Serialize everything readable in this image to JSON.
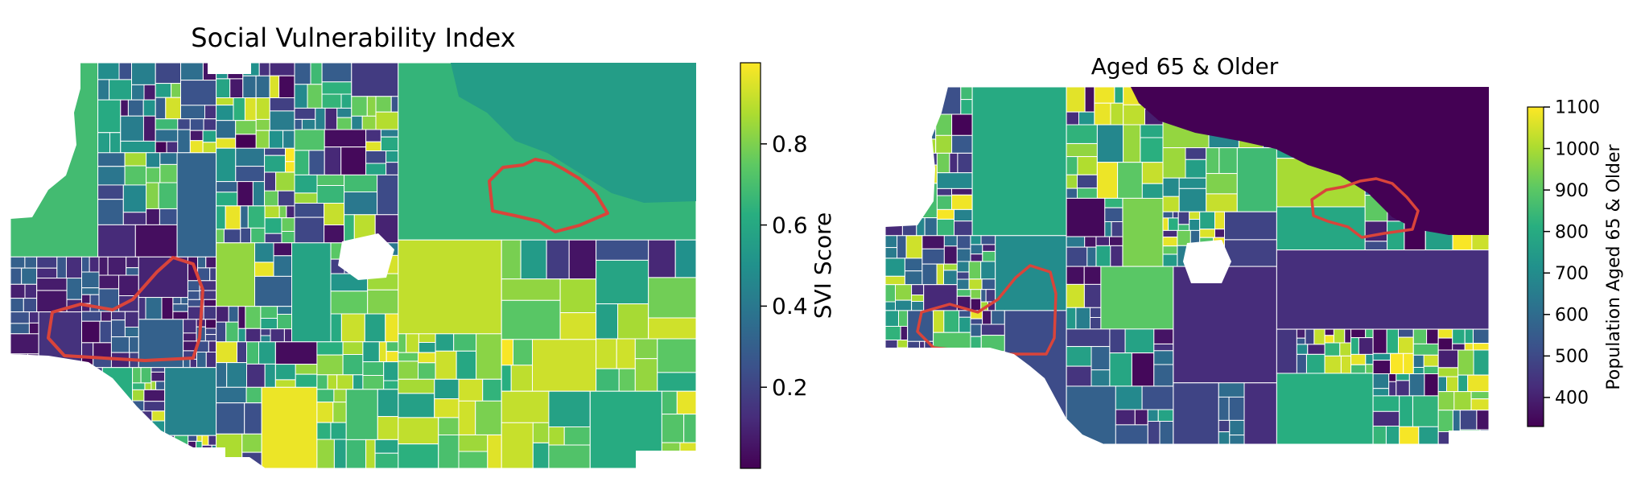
{
  "maps": [
    {
      "title": "Social Vulnerability Index",
      "colorbar": {
        "label": "SVI Score",
        "range": [
          0,
          1
        ],
        "ticks": [
          0.2,
          0.4,
          0.6,
          0.8
        ]
      }
    },
    {
      "title": "Aged 65 & Older",
      "colorbar": {
        "label": "Population Aged 65 & Older",
        "range": [
          330,
          1100
        ],
        "ticks": [
          400,
          500,
          600,
          700,
          800,
          900,
          1000,
          1100
        ]
      }
    }
  ],
  "colors": {
    "colormap": "viridis",
    "boundary_outline": "#d9443a",
    "tract_border": "#ffffff"
  }
}
